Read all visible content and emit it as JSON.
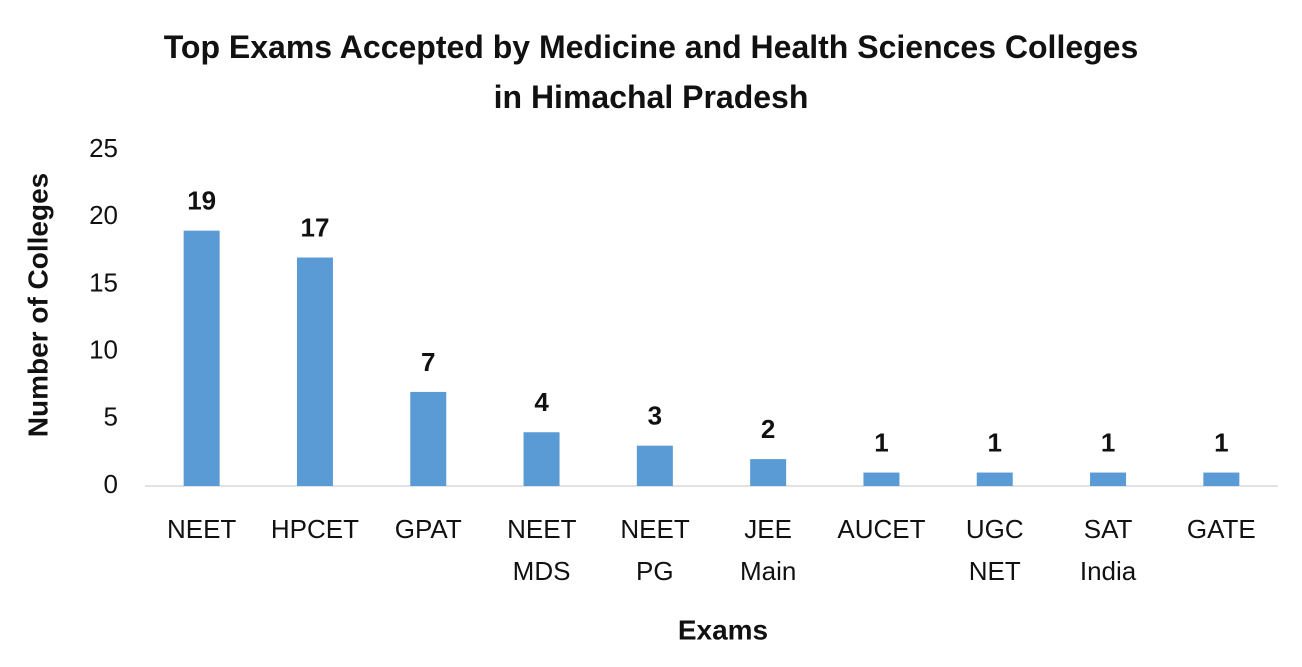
{
  "chart_data": {
    "type": "bar",
    "title": "Top Exams Accepted by Medicine and Health Sciences Colleges in Himachal Pradesh",
    "x_label": "Exams",
    "y_label": "Number of Colleges",
    "categories": [
      "NEET",
      "HPCET",
      "GPAT",
      "NEET MDS",
      "NEET PG",
      "JEE Main",
      "AUCET",
      "UGC NET",
      "SAT India",
      "GATE"
    ],
    "values": [
      19,
      17,
      7,
      4,
      3,
      2,
      1,
      1,
      1,
      1
    ],
    "color": "#5b9bd5",
    "ylim": [
      0,
      25
    ],
    "yticks": [
      0,
      5,
      10,
      15,
      20,
      25
    ],
    "grid": false
  }
}
